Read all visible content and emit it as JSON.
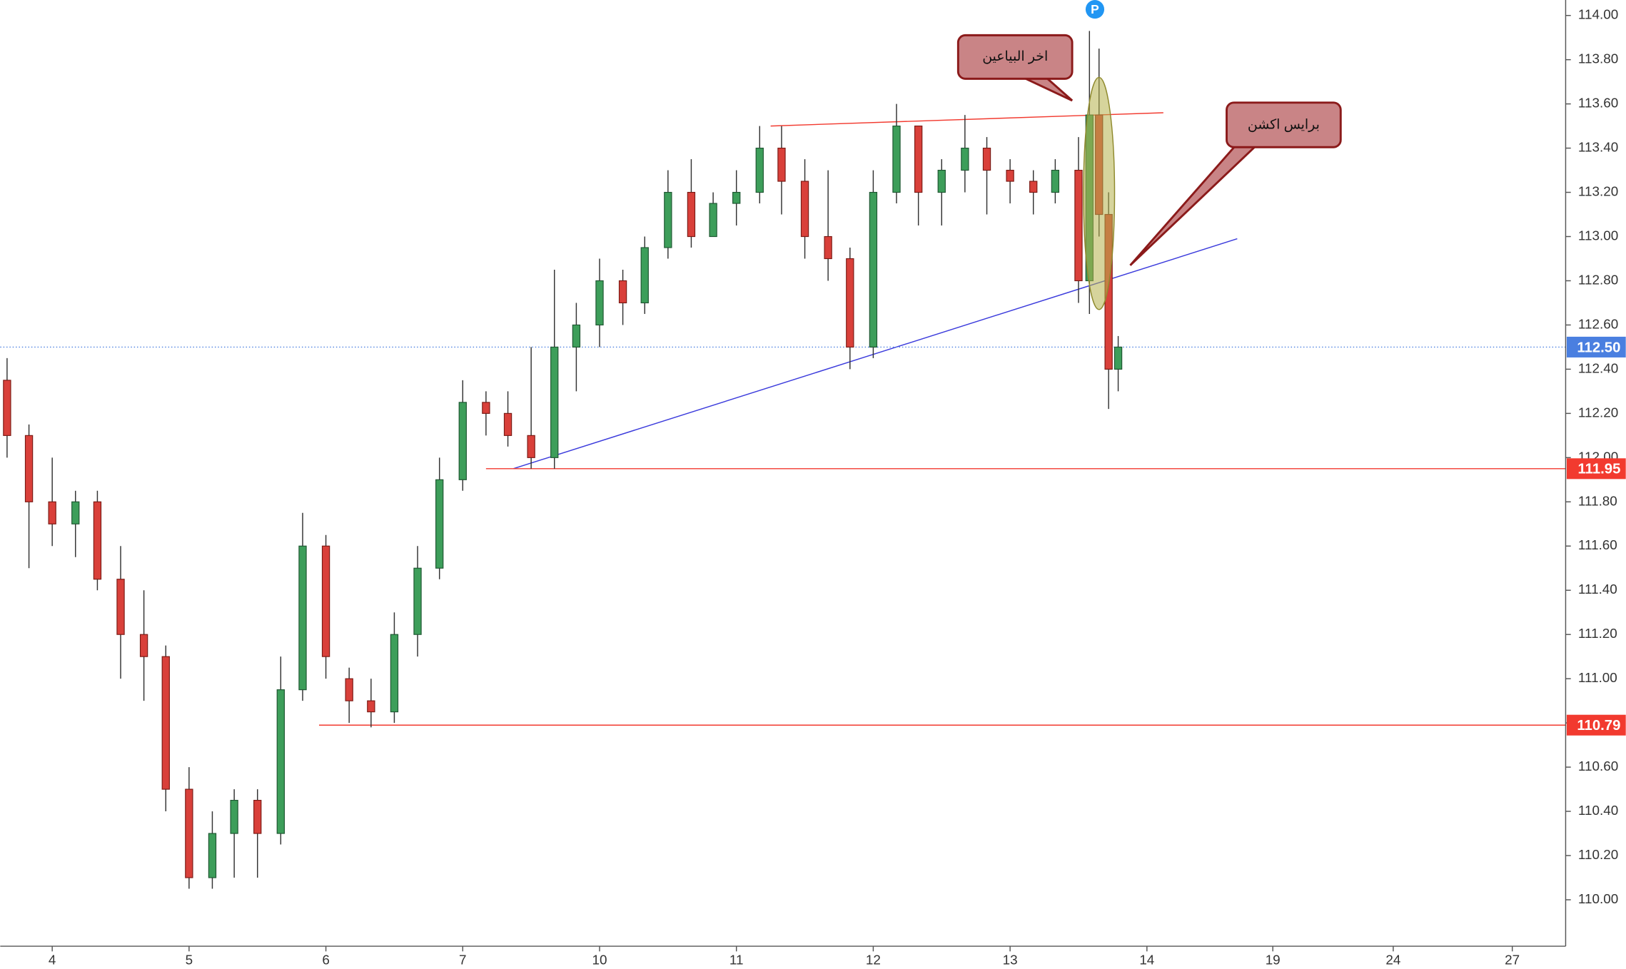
{
  "chart_data": {
    "type": "candlestick",
    "xlim": [
      -0.38,
      11.06
    ],
    "ylim": [
      109.79,
      114.07
    ],
    "xticks": [
      {
        "value": 0,
        "label": "4"
      },
      {
        "value": 1,
        "label": "5"
      },
      {
        "value": 2,
        "label": "6"
      },
      {
        "value": 3,
        "label": "7"
      },
      {
        "value": 4,
        "label": "10"
      },
      {
        "value": 5,
        "label": "11"
      },
      {
        "value": 6,
        "label": "12"
      },
      {
        "value": 7,
        "label": "13"
      },
      {
        "value": 8,
        "label": "14"
      },
      {
        "value": 8.92,
        "label": "19"
      },
      {
        "value": 9.8,
        "label": "24"
      },
      {
        "value": 10.67,
        "label": "27"
      }
    ],
    "yticks": [
      {
        "value": 110,
        "label": "110.00"
      },
      {
        "value": 110.2,
        "label": "110.20"
      },
      {
        "value": 110.4,
        "label": "110.40"
      },
      {
        "value": 110.6,
        "label": "110.60"
      },
      {
        "value": 110.8,
        "label": "110.80"
      },
      {
        "value": 111,
        "label": "111.00"
      },
      {
        "value": 111.2,
        "label": "111.20"
      },
      {
        "value": 111.4,
        "label": "111.40"
      },
      {
        "value": 111.6,
        "label": "111.60"
      },
      {
        "value": 111.8,
        "label": "111.80"
      },
      {
        "value": 112,
        "label": "112.00"
      },
      {
        "value": 112.2,
        "label": "112.20"
      },
      {
        "value": 112.4,
        "label": "112.40"
      },
      {
        "value": 112.6,
        "label": "112.60"
      },
      {
        "value": 112.8,
        "label": "112.80"
      },
      {
        "value": 113,
        "label": "113.00"
      },
      {
        "value": 113.2,
        "label": "113.20"
      },
      {
        "value": 113.4,
        "label": "113.40"
      },
      {
        "value": 113.6,
        "label": "113.60"
      },
      {
        "value": 113.8,
        "label": "113.80"
      },
      {
        "value": 114,
        "label": "114.00"
      }
    ],
    "up_color": "#3d9e5a",
    "down_color": "#d9403a",
    "x": [
      -0.33,
      -0.17,
      0,
      0.17,
      0.33,
      0.5,
      0.67,
      0.83,
      1,
      1.17,
      1.33,
      1.5,
      1.67,
      1.83,
      2,
      2.17,
      2.33,
      2.5,
      2.67,
      2.83,
      3,
      3.17,
      3.33,
      3.5,
      3.67,
      3.83,
      4,
      4.17,
      4.33,
      4.5,
      4.67,
      4.83,
      5,
      5.17,
      5.33,
      5.5,
      5.67,
      5.83,
      6,
      6.17,
      6.33,
      6.5,
      6.67,
      6.83,
      7,
      7.17,
      7.33,
      7.5,
      7.58,
      7.65,
      7.72,
      7.79
    ],
    "open": [
      112.35,
      112.1,
      111.8,
      111.7,
      111.8,
      111.45,
      111.2,
      111.1,
      110.5,
      110.1,
      110.3,
      110.45,
      110.3,
      110.95,
      111.6,
      111.0,
      110.9,
      110.85,
      111.2,
      111.5,
      111.9,
      112.25,
      112.2,
      112.1,
      112.0,
      112.5,
      112.6,
      112.8,
      112.7,
      112.95,
      113.2,
      113.0,
      113.15,
      113.2,
      113.4,
      113.25,
      113.0,
      112.9,
      112.5,
      113.2,
      113.5,
      113.2,
      113.3,
      113.4,
      113.3,
      113.25,
      113.2,
      113.3,
      112.8,
      113.55,
      113.1,
      112.4
    ],
    "high": [
      112.45,
      112.15,
      112.0,
      111.85,
      111.85,
      111.6,
      111.4,
      111.15,
      110.6,
      110.4,
      110.5,
      110.5,
      111.1,
      111.75,
      111.65,
      111.05,
      111.0,
      111.3,
      111.6,
      112.0,
      112.35,
      112.3,
      112.3,
      112.5,
      112.85,
      112.7,
      112.9,
      112.85,
      113.0,
      113.3,
      113.35,
      113.2,
      113.3,
      113.5,
      113.5,
      113.35,
      113.3,
      112.95,
      113.3,
      113.6,
      113.5,
      113.35,
      113.55,
      113.45,
      113.35,
      113.3,
      113.35,
      113.45,
      113.93,
      113.85,
      113.2,
      112.55
    ],
    "low": [
      112.0,
      111.5,
      111.6,
      111.55,
      111.4,
      111.0,
      110.9,
      110.4,
      110.05,
      110.05,
      110.1,
      110.1,
      110.25,
      110.9,
      111.0,
      110.8,
      110.78,
      110.8,
      111.1,
      111.45,
      111.85,
      112.1,
      112.05,
      111.95,
      111.95,
      112.3,
      112.5,
      112.6,
      112.65,
      112.9,
      112.95,
      113.0,
      113.05,
      113.15,
      113.1,
      112.9,
      112.8,
      112.4,
      112.45,
      113.15,
      113.05,
      113.05,
      113.2,
      113.1,
      113.15,
      113.1,
      113.15,
      112.7,
      112.65,
      113.0,
      112.22,
      112.3
    ],
    "close": [
      112.1,
      111.8,
      111.7,
      111.8,
      111.45,
      111.2,
      111.1,
      110.5,
      110.1,
      110.3,
      110.45,
      110.3,
      110.95,
      111.6,
      111.1,
      110.9,
      110.85,
      111.2,
      111.5,
      111.9,
      112.25,
      112.2,
      112.1,
      112.0,
      112.5,
      112.6,
      112.8,
      112.7,
      112.95,
      113.2,
      113.0,
      113.15,
      113.2,
      113.4,
      113.25,
      113.0,
      112.9,
      112.5,
      113.2,
      113.5,
      113.2,
      113.3,
      113.4,
      113.3,
      113.25,
      113.2,
      113.3,
      112.8,
      113.55,
      113.1,
      112.4,
      112.5
    ],
    "price_lines": [
      {
        "value": 111.95,
        "color": "#f23a2f",
        "x_start": 3.17
      },
      {
        "value": 110.79,
        "color": "#f23a2f",
        "x_start": 1.95
      }
    ],
    "current_price": {
      "value": 112.5,
      "label": "112.50",
      "color": "#4a7fe0"
    },
    "trend_lines": [
      {
        "color": "#3b3bdc",
        "x": [
          3.37,
          8.66
        ],
        "y": [
          111.95,
          112.99
        ]
      },
      {
        "color": "#f23a2f",
        "x": [
          5.25,
          8.12
        ],
        "y": [
          113.5,
          113.56
        ]
      }
    ],
    "highlight": {
      "x": 7.65,
      "y": [
        113.72,
        112.67
      ],
      "color": "#b5b04a"
    },
    "marker": {
      "text": "P",
      "x": 7.62,
      "color": "#2196f3"
    },
    "annotations": [
      {
        "text": "اخر البياعين"
      },
      {
        "text": "برايس اكشن"
      }
    ]
  }
}
